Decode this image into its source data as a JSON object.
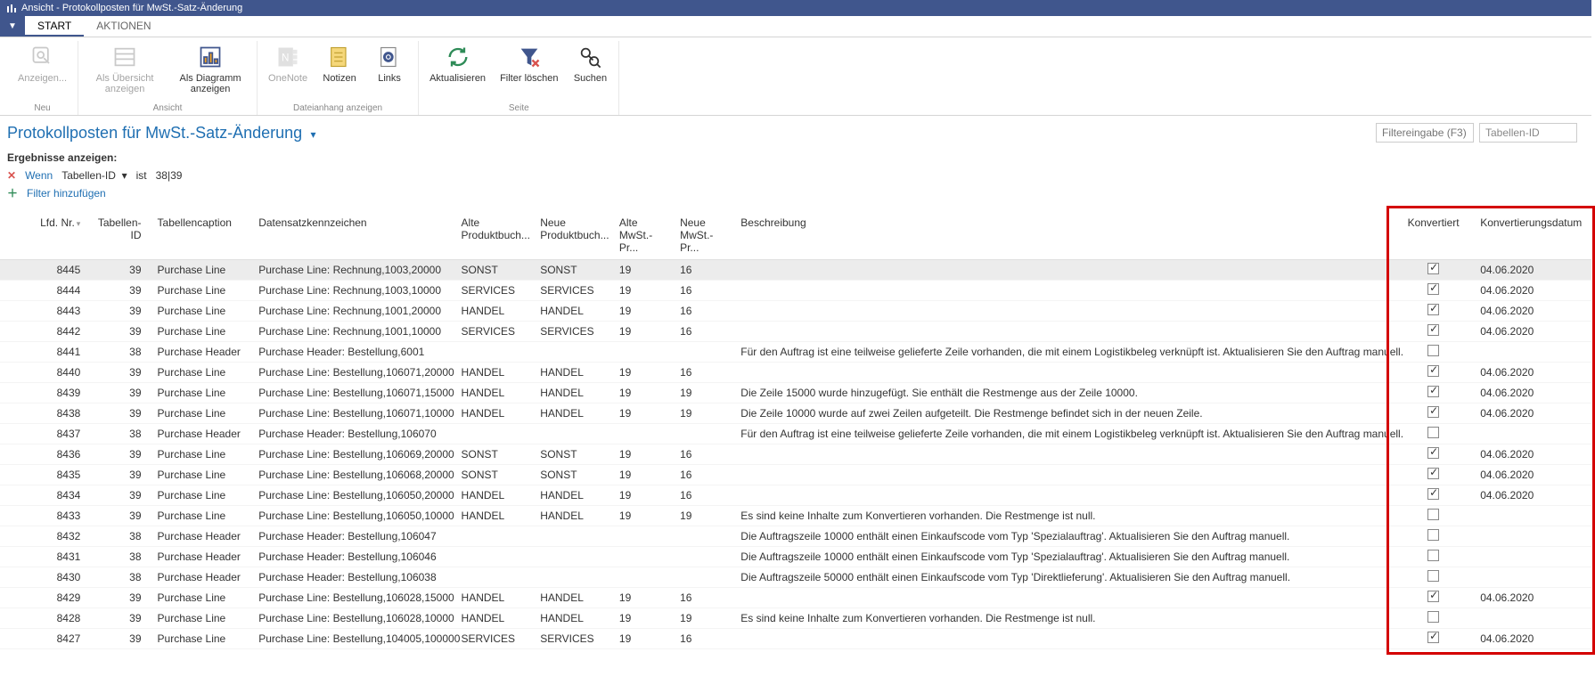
{
  "window": {
    "title": "Ansicht - Protokollposten für MwSt.-Satz-Änderung"
  },
  "ribbon": {
    "tabs": {
      "start": "START",
      "aktionen": "AKTIONEN"
    },
    "groups": {
      "neu": {
        "title": "Neu",
        "anzeigen": "Anzeigen..."
      },
      "ansicht": {
        "title": "Ansicht",
        "ubersicht": "Als Übersicht anzeigen",
        "diagramm": "Als Diagramm anzeigen"
      },
      "dateianhang": {
        "title": "Dateianhang anzeigen",
        "onenote": "OneNote",
        "notizen": "Notizen",
        "links": "Links"
      },
      "seite": {
        "title": "Seite",
        "aktualisieren": "Aktualisieren",
        "filterloeschen": "Filter löschen",
        "suchen": "Suchen"
      }
    }
  },
  "page": {
    "title": "Protokollposten für MwSt.-Satz-Änderung",
    "filter_placeholder": "Filtereingabe (F3)",
    "filter_field": "Tabellen-ID"
  },
  "filter": {
    "heading": "Ergebnisse anzeigen:",
    "wenn": "Wenn",
    "field": "Tabellen-ID",
    "op": "ist",
    "value": "38|39",
    "add": "Filter hinzufügen"
  },
  "columns": {
    "lfdnr": "Lfd. Nr.",
    "tabellenid": "Tabellen-ID",
    "tabellencaption": "Tabellencaption",
    "datensatz": "Datensatzkennzeichen",
    "alteProdukt": "Alte Produktbuch...",
    "neueProdukt": "Neue Produktbuch...",
    "alteMwst": "Alte MwSt.-Pr...",
    "neueMwst": "Neue MwSt.-Pr...",
    "beschreibung": "Beschreibung",
    "konvertiert": "Konvertiert",
    "konvdatum": "Konvertierungsdatum"
  },
  "rows": [
    {
      "lfd": "8445",
      "tid": "39",
      "cap": "Purchase Line",
      "ds": "Purchase Line: Rechnung,1003,20000",
      "ap": "SONST",
      "np": "SONST",
      "am": "19",
      "nm": "16",
      "b": "",
      "k": true,
      "kd": "04.06.2020",
      "sel": true
    },
    {
      "lfd": "8444",
      "tid": "39",
      "cap": "Purchase Line",
      "ds": "Purchase Line: Rechnung,1003,10000",
      "ap": "SERVICES",
      "np": "SERVICES",
      "am": "19",
      "nm": "16",
      "b": "",
      "k": true,
      "kd": "04.06.2020"
    },
    {
      "lfd": "8443",
      "tid": "39",
      "cap": "Purchase Line",
      "ds": "Purchase Line: Rechnung,1001,20000",
      "ap": "HANDEL",
      "np": "HANDEL",
      "am": "19",
      "nm": "16",
      "b": "",
      "k": true,
      "kd": "04.06.2020"
    },
    {
      "lfd": "8442",
      "tid": "39",
      "cap": "Purchase Line",
      "ds": "Purchase Line: Rechnung,1001,10000",
      "ap": "SERVICES",
      "np": "SERVICES",
      "am": "19",
      "nm": "16",
      "b": "",
      "k": true,
      "kd": "04.06.2020"
    },
    {
      "lfd": "8441",
      "tid": "38",
      "cap": "Purchase Header",
      "ds": "Purchase Header: Bestellung,6001",
      "ap": "",
      "np": "",
      "am": "",
      "nm": "",
      "b": "Für den Auftrag ist eine teilweise gelieferte Zeile vorhanden, die mit einem Logistikbeleg verknüpft ist. Aktualisieren Sie den Auftrag manuell.",
      "k": false,
      "kd": ""
    },
    {
      "lfd": "8440",
      "tid": "39",
      "cap": "Purchase Line",
      "ds": "Purchase Line: Bestellung,106071,20000",
      "ap": "HANDEL",
      "np": "HANDEL",
      "am": "19",
      "nm": "16",
      "b": "",
      "k": true,
      "kd": "04.06.2020"
    },
    {
      "lfd": "8439",
      "tid": "39",
      "cap": "Purchase Line",
      "ds": "Purchase Line: Bestellung,106071,15000",
      "ap": "HANDEL",
      "np": "HANDEL",
      "am": "19",
      "nm": "19",
      "b": "Die Zeile 15000 wurde hinzugefügt. Sie enthält die Restmenge aus der Zeile 10000.",
      "k": true,
      "kd": "04.06.2020"
    },
    {
      "lfd": "8438",
      "tid": "39",
      "cap": "Purchase Line",
      "ds": "Purchase Line: Bestellung,106071,10000",
      "ap": "HANDEL",
      "np": "HANDEL",
      "am": "19",
      "nm": "19",
      "b": "Die Zeile 10000 wurde auf zwei Zeilen aufgeteilt. Die Restmenge befindet sich in der neuen Zeile.",
      "k": true,
      "kd": "04.06.2020"
    },
    {
      "lfd": "8437",
      "tid": "38",
      "cap": "Purchase Header",
      "ds": "Purchase Header: Bestellung,106070",
      "ap": "",
      "np": "",
      "am": "",
      "nm": "",
      "b": "Für den Auftrag ist eine teilweise gelieferte Zeile vorhanden, die mit einem Logistikbeleg verknüpft ist. Aktualisieren Sie den Auftrag manuell.",
      "k": false,
      "kd": ""
    },
    {
      "lfd": "8436",
      "tid": "39",
      "cap": "Purchase Line",
      "ds": "Purchase Line: Bestellung,106069,20000",
      "ap": "SONST",
      "np": "SONST",
      "am": "19",
      "nm": "16",
      "b": "",
      "k": true,
      "kd": "04.06.2020"
    },
    {
      "lfd": "8435",
      "tid": "39",
      "cap": "Purchase Line",
      "ds": "Purchase Line: Bestellung,106068,20000",
      "ap": "SONST",
      "np": "SONST",
      "am": "19",
      "nm": "16",
      "b": "",
      "k": true,
      "kd": "04.06.2020"
    },
    {
      "lfd": "8434",
      "tid": "39",
      "cap": "Purchase Line",
      "ds": "Purchase Line: Bestellung,106050,20000",
      "ap": "HANDEL",
      "np": "HANDEL",
      "am": "19",
      "nm": "16",
      "b": "",
      "k": true,
      "kd": "04.06.2020"
    },
    {
      "lfd": "8433",
      "tid": "39",
      "cap": "Purchase Line",
      "ds": "Purchase Line: Bestellung,106050,10000",
      "ap": "HANDEL",
      "np": "HANDEL",
      "am": "19",
      "nm": "19",
      "b": "Es sind keine Inhalte zum Konvertieren vorhanden. Die Restmenge ist null.",
      "k": false,
      "kd": ""
    },
    {
      "lfd": "8432",
      "tid": "38",
      "cap": "Purchase Header",
      "ds": "Purchase Header: Bestellung,106047",
      "ap": "",
      "np": "",
      "am": "",
      "nm": "",
      "b": "Die Auftragszeile 10000 enthält einen Einkaufscode vom Typ 'Spezialauftrag'. Aktualisieren Sie den Auftrag manuell.",
      "k": false,
      "kd": ""
    },
    {
      "lfd": "8431",
      "tid": "38",
      "cap": "Purchase Header",
      "ds": "Purchase Header: Bestellung,106046",
      "ap": "",
      "np": "",
      "am": "",
      "nm": "",
      "b": "Die Auftragszeile 10000 enthält einen Einkaufscode vom Typ 'Spezialauftrag'. Aktualisieren Sie den Auftrag manuell.",
      "k": false,
      "kd": ""
    },
    {
      "lfd": "8430",
      "tid": "38",
      "cap": "Purchase Header",
      "ds": "Purchase Header: Bestellung,106038",
      "ap": "",
      "np": "",
      "am": "",
      "nm": "",
      "b": "Die Auftragszeile 50000 enthält einen Einkaufscode vom Typ 'Direktlieferung'. Aktualisieren Sie den Auftrag manuell.",
      "k": false,
      "kd": ""
    },
    {
      "lfd": "8429",
      "tid": "39",
      "cap": "Purchase Line",
      "ds": "Purchase Line: Bestellung,106028,15000",
      "ap": "HANDEL",
      "np": "HANDEL",
      "am": "19",
      "nm": "16",
      "b": "",
      "k": true,
      "kd": "04.06.2020"
    },
    {
      "lfd": "8428",
      "tid": "39",
      "cap": "Purchase Line",
      "ds": "Purchase Line: Bestellung,106028,10000",
      "ap": "HANDEL",
      "np": "HANDEL",
      "am": "19",
      "nm": "19",
      "b": "Es sind keine Inhalte zum Konvertieren vorhanden. Die Restmenge ist null.",
      "k": false,
      "kd": ""
    },
    {
      "lfd": "8427",
      "tid": "39",
      "cap": "Purchase Line",
      "ds": "Purchase Line: Bestellung,104005,100000",
      "ap": "SERVICES",
      "np": "SERVICES",
      "am": "19",
      "nm": "16",
      "b": "",
      "k": true,
      "kd": "04.06.2020"
    }
  ]
}
